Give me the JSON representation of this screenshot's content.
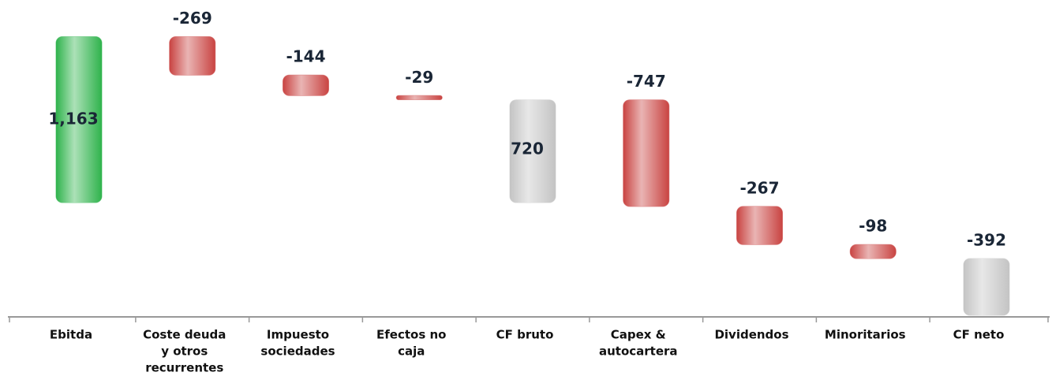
{
  "chart_data": {
    "type": "waterfall",
    "categories": [
      [
        "Ebitda"
      ],
      [
        "Coste deuda",
        "y otros",
        "recurrentes"
      ],
      [
        "Impuesto",
        "sociedades"
      ],
      [
        "Efectos no",
        "caja"
      ],
      [
        "CF bruto"
      ],
      [
        "Capex &",
        "autocartera"
      ],
      [
        "Dividendos"
      ],
      [
        "Minoritarios"
      ],
      [
        "CF neto"
      ]
    ],
    "values": [
      1163,
      -269,
      -144,
      -29,
      720,
      -747,
      -267,
      -98,
      -392
    ],
    "value_labels": [
      "1,163",
      "-269",
      "-144",
      "-29",
      "720",
      "-747",
      "-267",
      "-98",
      "-392"
    ],
    "measure": [
      "absolute",
      "relative",
      "relative",
      "relative",
      "absolute",
      "relative",
      "relative",
      "relative",
      "absolute"
    ],
    "colors": [
      "#2fb34c",
      "#c94442",
      "#c94442",
      "#c94442",
      "#c4c4c4",
      "#c94442",
      "#c94442",
      "#c94442",
      "#c4c4c4"
    ],
    "ylim": [
      -790,
      1420
    ]
  }
}
